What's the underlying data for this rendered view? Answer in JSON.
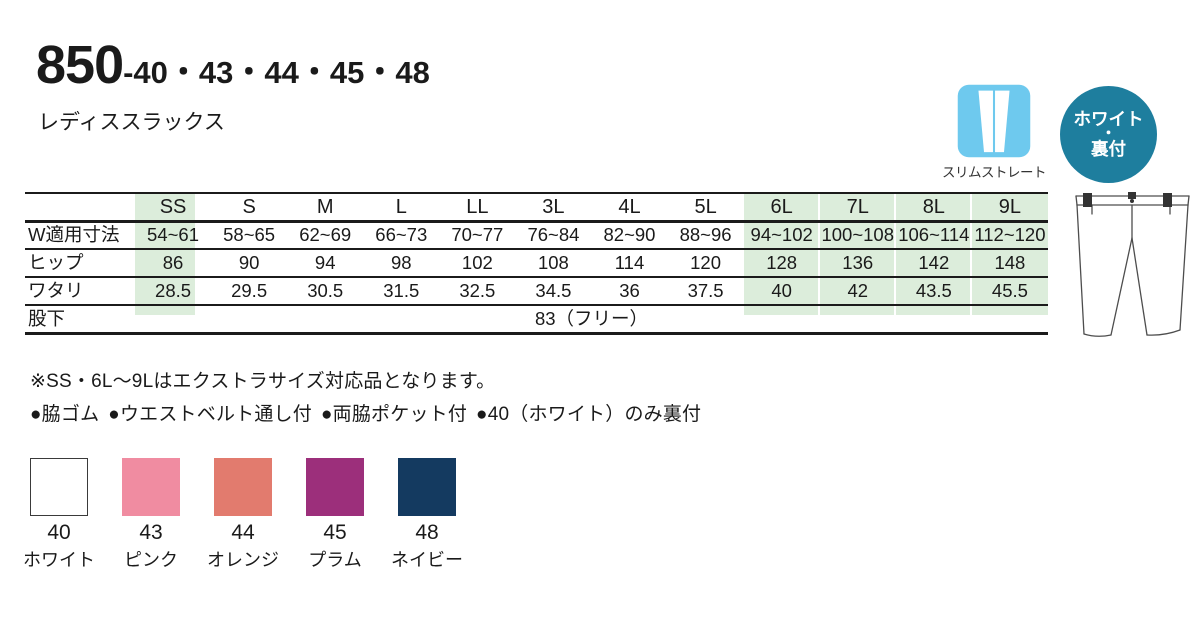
{
  "header": {
    "product_code": "850",
    "color_codes": "-40・43・44・45・48",
    "product_name": "レディススラックス"
  },
  "badges": {
    "fit": {
      "label": "スリムストレート",
      "icon": "slim-straight-pants-icon",
      "icon_bg": "#6ec9ee"
    },
    "lining": {
      "line1": "ホワイト",
      "line2": "・",
      "line3": "裏付",
      "bg": "#1e7e9e"
    }
  },
  "size_table": {
    "columns": [
      "SS",
      "S",
      "M",
      "L",
      "LL",
      "3L",
      "4L",
      "5L",
      "6L",
      "7L",
      "8L",
      "9L"
    ],
    "highlight_color": "#dceddb",
    "highlighted_columns": [
      "SS",
      "6L",
      "7L",
      "8L",
      "9L"
    ],
    "rows": [
      {
        "label": "W適用寸法",
        "values": [
          "54~61",
          "58~65",
          "62~69",
          "66~73",
          "70~77",
          "76~84",
          "82~90",
          "88~96",
          "94~102",
          "100~108",
          "106~114",
          "112~120"
        ]
      },
      {
        "label": "ヒップ",
        "values": [
          "86",
          "90",
          "94",
          "98",
          "102",
          "108",
          "114",
          "120",
          "128",
          "136",
          "142",
          "148"
        ]
      },
      {
        "label": "ワタリ",
        "values": [
          "28.5",
          "29.5",
          "30.5",
          "31.5",
          "32.5",
          "34.5",
          "36",
          "37.5",
          "40",
          "42",
          "43.5",
          "45.5"
        ]
      },
      {
        "label": "股下",
        "span_value": "83（フリー）"
      }
    ]
  },
  "notes": {
    "extra_size": "※SS・6L～9Lはエクストラサイズ対応品となります。",
    "features": [
      "●脇ゴム",
      "●ウエストベルト通し付",
      "●両脇ポケット付",
      "●40（ホワイト）のみ裏付"
    ]
  },
  "color_swatches": [
    {
      "code": "40",
      "name": "ホワイト",
      "hex": "#ffffff"
    },
    {
      "code": "43",
      "name": "ピンク",
      "hex": "#f08ca1"
    },
    {
      "code": "44",
      "name": "オレンジ",
      "hex": "#e27b6e"
    },
    {
      "code": "45",
      "name": "プラム",
      "hex": "#9c2f7b"
    },
    {
      "code": "48",
      "name": "ネイビー",
      "hex": "#143a60"
    }
  ]
}
